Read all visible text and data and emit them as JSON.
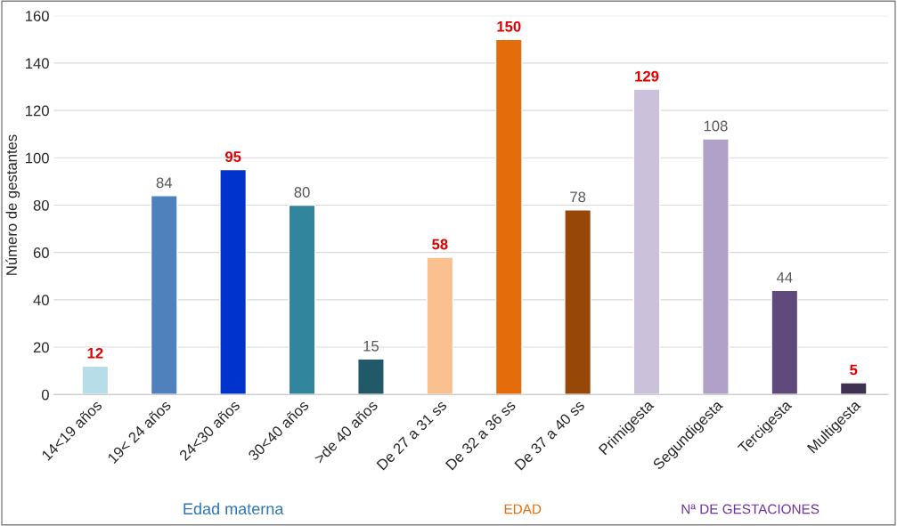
{
  "chart_data": {
    "type": "bar",
    "ylabel": "Número de gestantes",
    "categories": [
      "14<19 años",
      "19< 24 años",
      "24<30 años",
      "30<40 años",
      ">de 40 años",
      "De 27 a 31 ss",
      "De 32 a 36 ss",
      "De 37 a 40 ss",
      "Primigesta",
      "Segundigesta",
      "Tercigesta",
      "Multigesta"
    ],
    "values": [
      12,
      84,
      95,
      80,
      15,
      58,
      150,
      78,
      129,
      108,
      44,
      5
    ],
    "colors": [
      "#b7dde8",
      "#4f81bd",
      "#0033cc",
      "#31859c",
      "#215968",
      "#fac090",
      "#e46c0a",
      "#974706",
      "#ccc1da",
      "#b1a0c7",
      "#604a7b",
      "#3f3151"
    ],
    "ylim": [
      0,
      160
    ],
    "yticks": [
      0,
      20,
      40,
      60,
      80,
      100,
      120,
      140,
      160
    ],
    "grid": "y",
    "data_labels": true,
    "annotations": [
      "Edad materna",
      "EDAD",
      "Nª DE GESTACIONES"
    ]
  }
}
